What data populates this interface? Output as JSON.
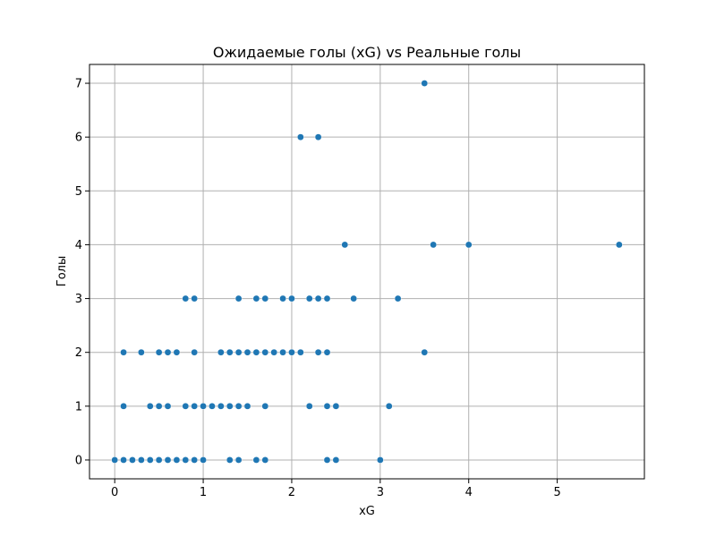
{
  "chart_data": {
    "type": "scatter",
    "title": "Ожидаемые голы (xG) vs Реальные голы",
    "xlabel": "xG",
    "ylabel": "Голы",
    "xlim": [
      -0.285,
      5.985
    ],
    "ylim": [
      -0.35,
      7.35
    ],
    "xticks": [
      0,
      1,
      2,
      3,
      4,
      5
    ],
    "yticks": [
      0,
      1,
      2,
      3,
      4,
      5,
      6,
      7
    ],
    "grid": true,
    "marker_color": "#1f77b4",
    "points": [
      {
        "x": 0.0,
        "y": 0
      },
      {
        "x": 0.1,
        "y": 0
      },
      {
        "x": 0.2,
        "y": 0
      },
      {
        "x": 0.3,
        "y": 0
      },
      {
        "x": 0.4,
        "y": 0
      },
      {
        "x": 0.5,
        "y": 0
      },
      {
        "x": 0.6,
        "y": 0
      },
      {
        "x": 0.7,
        "y": 0
      },
      {
        "x": 0.8,
        "y": 0
      },
      {
        "x": 0.9,
        "y": 0
      },
      {
        "x": 1.0,
        "y": 0
      },
      {
        "x": 1.3,
        "y": 0
      },
      {
        "x": 1.4,
        "y": 0
      },
      {
        "x": 1.6,
        "y": 0
      },
      {
        "x": 1.7,
        "y": 0
      },
      {
        "x": 2.4,
        "y": 0
      },
      {
        "x": 2.5,
        "y": 0
      },
      {
        "x": 3.0,
        "y": 0
      },
      {
        "x": 0.1,
        "y": 1
      },
      {
        "x": 0.4,
        "y": 1
      },
      {
        "x": 0.5,
        "y": 1
      },
      {
        "x": 0.6,
        "y": 1
      },
      {
        "x": 0.8,
        "y": 1
      },
      {
        "x": 0.9,
        "y": 1
      },
      {
        "x": 1.0,
        "y": 1
      },
      {
        "x": 1.1,
        "y": 1
      },
      {
        "x": 1.2,
        "y": 1
      },
      {
        "x": 1.3,
        "y": 1
      },
      {
        "x": 1.4,
        "y": 1
      },
      {
        "x": 1.5,
        "y": 1
      },
      {
        "x": 1.7,
        "y": 1
      },
      {
        "x": 2.2,
        "y": 1
      },
      {
        "x": 2.4,
        "y": 1
      },
      {
        "x": 2.5,
        "y": 1
      },
      {
        "x": 3.1,
        "y": 1
      },
      {
        "x": 0.1,
        "y": 2
      },
      {
        "x": 0.3,
        "y": 2
      },
      {
        "x": 0.5,
        "y": 2
      },
      {
        "x": 0.6,
        "y": 2
      },
      {
        "x": 0.7,
        "y": 2
      },
      {
        "x": 0.9,
        "y": 2
      },
      {
        "x": 1.2,
        "y": 2
      },
      {
        "x": 1.3,
        "y": 2
      },
      {
        "x": 1.4,
        "y": 2
      },
      {
        "x": 1.5,
        "y": 2
      },
      {
        "x": 1.6,
        "y": 2
      },
      {
        "x": 1.7,
        "y": 2
      },
      {
        "x": 1.8,
        "y": 2
      },
      {
        "x": 1.9,
        "y": 2
      },
      {
        "x": 2.0,
        "y": 2
      },
      {
        "x": 2.1,
        "y": 2
      },
      {
        "x": 2.3,
        "y": 2
      },
      {
        "x": 2.4,
        "y": 2
      },
      {
        "x": 3.5,
        "y": 2
      },
      {
        "x": 0.8,
        "y": 3
      },
      {
        "x": 0.9,
        "y": 3
      },
      {
        "x": 1.4,
        "y": 3
      },
      {
        "x": 1.6,
        "y": 3
      },
      {
        "x": 1.7,
        "y": 3
      },
      {
        "x": 1.9,
        "y": 3
      },
      {
        "x": 2.0,
        "y": 3
      },
      {
        "x": 2.2,
        "y": 3
      },
      {
        "x": 2.3,
        "y": 3
      },
      {
        "x": 2.4,
        "y": 3
      },
      {
        "x": 2.7,
        "y": 3
      },
      {
        "x": 3.2,
        "y": 3
      },
      {
        "x": 2.6,
        "y": 4
      },
      {
        "x": 3.6,
        "y": 4
      },
      {
        "x": 4.0,
        "y": 4
      },
      {
        "x": 5.7,
        "y": 4
      },
      {
        "x": 2.1,
        "y": 6
      },
      {
        "x": 2.3,
        "y": 6
      },
      {
        "x": 3.5,
        "y": 7
      }
    ]
  }
}
